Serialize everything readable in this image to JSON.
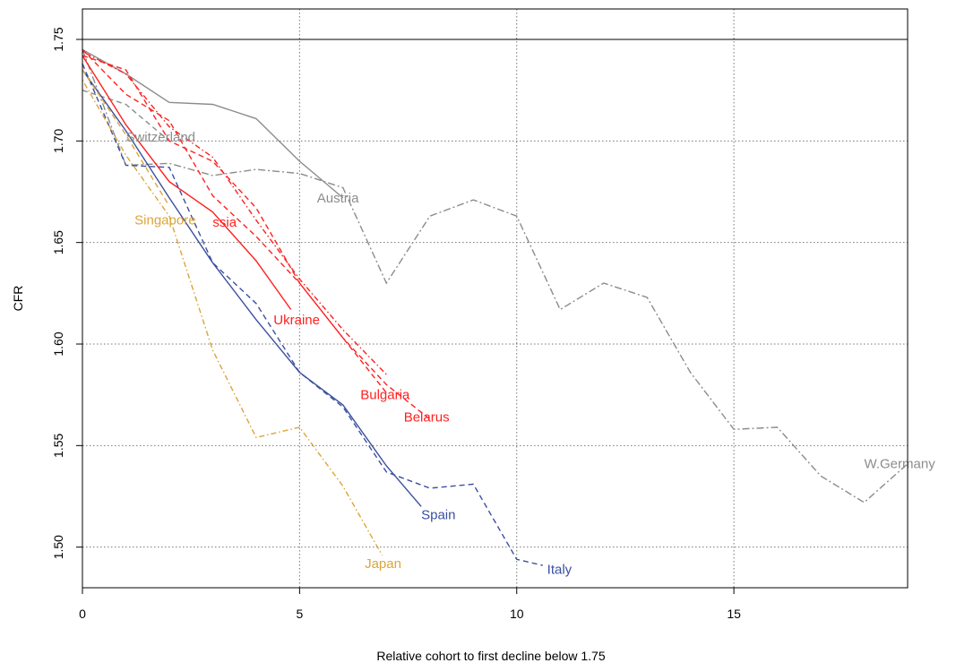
{
  "chart_data": {
    "type": "line",
    "title": "",
    "xlabel": "Relative cohort to first decline below 1.75",
    "ylabel": "CFR",
    "xlim": [
      0,
      19
    ],
    "ylim": [
      1.48,
      1.765
    ],
    "x_ticks": [
      "0",
      "5",
      "10",
      "15"
    ],
    "y_ticks": [
      "1.50",
      "1.55",
      "1.60",
      "1.65",
      "1.70",
      "1.75"
    ],
    "grid": "dotted",
    "reference_line": 1.75,
    "colors": {
      "gray": "#8c8c8c",
      "red": "#ff2020",
      "blue": "#3b4fa0",
      "gold": "#dba539"
    },
    "series": [
      {
        "name": "W.Germany",
        "color": "gray",
        "dash": "dashdot",
        "label": "W.Germany",
        "x": [
          0,
          1,
          2,
          3,
          4,
          5,
          6,
          7,
          8,
          9,
          10,
          11,
          12,
          13,
          14,
          15,
          16,
          17,
          18,
          19
        ],
        "y": [
          1.745,
          1.688,
          1.689,
          1.683,
          1.686,
          1.684,
          1.677,
          1.63,
          1.663,
          1.671,
          1.663,
          1.617,
          1.63,
          1.623,
          1.586,
          1.558,
          1.559,
          1.535,
          1.522,
          1.541
        ]
      },
      {
        "name": "Austria",
        "color": "gray",
        "dash": "solid",
        "label": "Austria",
        "x": [
          0,
          1,
          2,
          3,
          4,
          5,
          6
        ],
        "y": [
          1.745,
          1.733,
          1.719,
          1.718,
          1.711,
          1.69,
          1.672
        ]
      },
      {
        "name": "Switzerland",
        "color": "gray",
        "dash": "dashed",
        "label": "Switzerland",
        "x": [
          0,
          1,
          2
        ],
        "y": [
          1.725,
          1.718,
          1.7
        ]
      },
      {
        "name": "Russia",
        "color": "red",
        "dash": "solid",
        "label": "ssia",
        "x": [
          0,
          1,
          2,
          3,
          4,
          4.8
        ],
        "y": [
          1.742,
          1.708,
          1.68,
          1.665,
          1.641,
          1.617
        ]
      },
      {
        "name": "Ukraine",
        "color": "red",
        "dash": "dotdash",
        "label": "Ukraine",
        "x": [
          0,
          1,
          2,
          3,
          4,
          5,
          6,
          7
        ],
        "y": [
          1.744,
          1.733,
          1.707,
          1.692,
          1.661,
          1.632,
          1.607,
          1.585
        ]
      },
      {
        "name": "Bulgaria",
        "color": "red",
        "dash": "dashed",
        "label": "Bulgaria",
        "x": [
          0,
          1,
          2,
          3,
          4,
          5,
          6,
          7,
          8
        ],
        "y": [
          1.742,
          1.735,
          1.7,
          1.69,
          1.667,
          1.63,
          1.603,
          1.58,
          1.563
        ]
      },
      {
        "name": "Belarus",
        "color": "red",
        "dash": "dashed",
        "label": "Belarus",
        "x": [
          0,
          1,
          2,
          3,
          4,
          5,
          6,
          7
        ],
        "y": [
          1.745,
          1.723,
          1.71,
          1.673,
          1.653,
          1.63,
          1.603,
          1.576
        ]
      },
      {
        "name": "Spain",
        "color": "blue",
        "dash": "solid",
        "label": "Spain",
        "x": [
          0,
          1,
          2,
          3,
          4,
          5,
          6,
          7,
          7.8
        ],
        "y": [
          1.735,
          1.705,
          1.672,
          1.64,
          1.612,
          1.586,
          1.57,
          1.54,
          1.52
        ]
      },
      {
        "name": "Italy",
        "color": "blue",
        "dash": "dashed",
        "label": "Italy",
        "x": [
          0,
          1,
          2,
          3,
          4,
          5,
          6,
          7,
          8,
          9,
          10,
          10.6
        ],
        "y": [
          1.738,
          1.688,
          1.687,
          1.64,
          1.62,
          1.586,
          1.569,
          1.537,
          1.529,
          1.531,
          1.494,
          1.491
        ]
      },
      {
        "name": "Singapore",
        "color": "gold",
        "dash": "dashed",
        "label": "Singapore",
        "x": [
          0,
          1,
          2
        ],
        "y": [
          1.735,
          1.703,
          1.668
        ]
      },
      {
        "name": "Japan",
        "color": "gold",
        "dash": "dotdash",
        "label": "Japan",
        "x": [
          0,
          1,
          2,
          3,
          4,
          5,
          6,
          6.9
        ],
        "y": [
          1.73,
          1.693,
          1.663,
          1.597,
          1.554,
          1.559,
          1.53,
          1.496
        ]
      }
    ],
    "labels": [
      {
        "text": "Switzerland",
        "x": 1.0,
        "y": 1.702,
        "color": "gray"
      },
      {
        "text": "Austria",
        "x": 5.4,
        "y": 1.672,
        "color": "gray"
      },
      {
        "text": "W.Germany",
        "x": 18.0,
        "y": 1.541,
        "color": "gray"
      },
      {
        "text": "Singapore",
        "x": 1.2,
        "y": 1.661,
        "color": "gold"
      },
      {
        "text": "ssia",
        "x": 3.0,
        "y": 1.66,
        "color": "red"
      },
      {
        "text": "Ukraine",
        "x": 4.4,
        "y": 1.612,
        "color": "red"
      },
      {
        "text": "Bulgaria",
        "x": 6.4,
        "y": 1.575,
        "color": "red"
      },
      {
        "text": "Belarus",
        "x": 7.4,
        "y": 1.564,
        "color": "red"
      },
      {
        "text": "Spain",
        "x": 7.8,
        "y": 1.516,
        "color": "blue"
      },
      {
        "text": "Italy",
        "x": 10.7,
        "y": 1.489,
        "color": "blue"
      },
      {
        "text": "Japan",
        "x": 6.5,
        "y": 1.492,
        "color": "gold"
      }
    ]
  }
}
